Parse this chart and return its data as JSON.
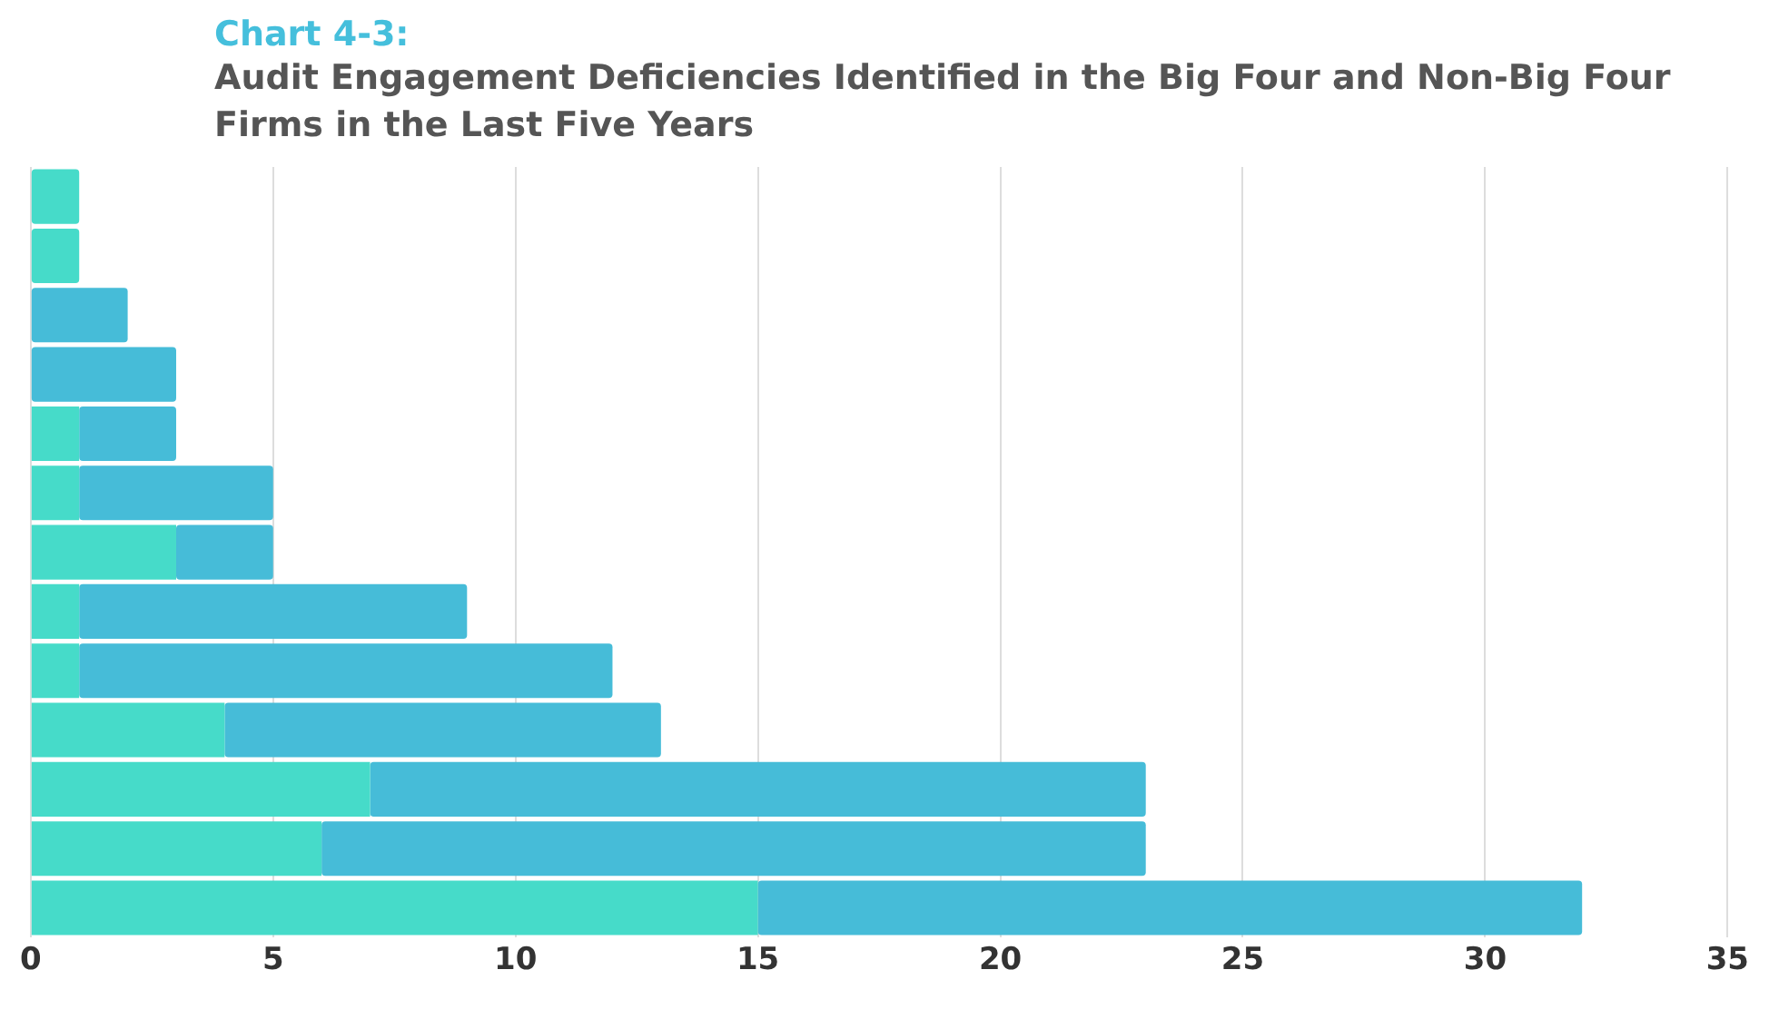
{
  "chart_data": {
    "type": "bar",
    "orientation": "horizontal",
    "stacked": true,
    "title": "Chart 4-3:",
    "subtitle": "Audit Engagement Deficiencies Identified in the Big Four and Non-Big Four Firms in the Last Five Years",
    "categories": [
      null,
      null,
      null,
      null,
      null,
      null,
      null,
      null,
      null,
      null,
      null,
      null,
      null
    ],
    "series": [
      {
        "color": "#46dbc9",
        "values": [
          1,
          1,
          0,
          0,
          1,
          1,
          3,
          1,
          1,
          4,
          7,
          6,
          15
        ]
      },
      {
        "color": "#46bcd8",
        "values": [
          0,
          0,
          2,
          3,
          2,
          4,
          2,
          8,
          11,
          9,
          16,
          17,
          17
        ]
      }
    ],
    "xlim": [
      0,
      35
    ],
    "xticks": [
      0,
      5,
      10,
      15,
      20,
      25,
      30,
      35
    ],
    "grid": "x",
    "legend": false,
    "tick_labels": "x"
  }
}
